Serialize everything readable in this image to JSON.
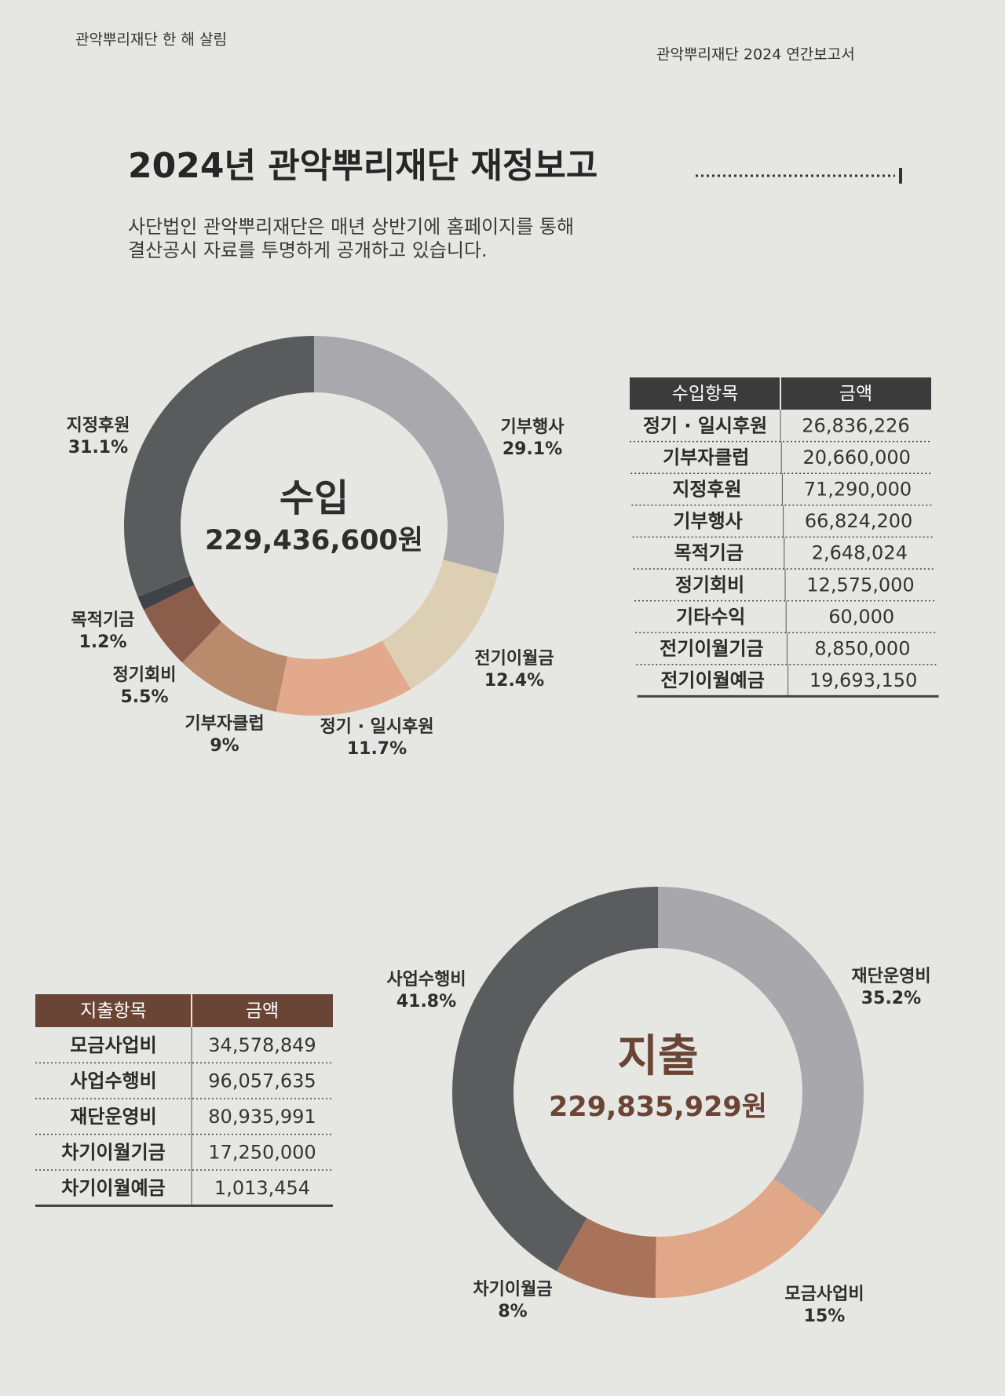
{
  "header": {
    "left": "관악뿌리재단 한 해 살림",
    "right": "관악뿌리재단 2024 연간보고서"
  },
  "title": "2024년 관악뿌리재단 재정보고",
  "description": [
    "사단법인 관악뿌리재단은 매년 상반기에 홈페이지를 통해",
    "결산공시 자료를 투명하게 공개하고 있습니다."
  ],
  "chart_data": [
    {
      "type": "pie",
      "center_label": "수입",
      "total_label": "229,436,600원",
      "categories": [
        "기부행사",
        "전기이월금",
        "정기 · 일시후원",
        "기부자클럽",
        "정기회비",
        "목적기금",
        "지정후원"
      ],
      "values": [
        29.1,
        12.4,
        11.7,
        9,
        5.5,
        1.2,
        31.1
      ],
      "value_labels": [
        "29.1%",
        "12.4%",
        "11.7%",
        "9%",
        "5.5%",
        "1.2%",
        "31.1%"
      ],
      "colors": [
        "#a9a9ad",
        "#ddcfb3",
        "#e2a98c",
        "#b98a6c",
        "#8b5d4b",
        "#3f4246",
        "#5a5b5d"
      ]
    },
    {
      "type": "pie",
      "center_label": "지출",
      "total_label": "229,835,929원",
      "categories": [
        "재단운영비",
        "모금사업비",
        "차기이월금",
        "사업수행비"
      ],
      "values": [
        35.2,
        15,
        8,
        41.8
      ],
      "value_labels": [
        "35.2%",
        "15%",
        "8%",
        "41.8%"
      ],
      "colors": [
        "#a8a8ac",
        "#e0a888",
        "#a9735a",
        "#5b5c5e"
      ]
    }
  ],
  "tables": [
    {
      "columns": [
        "수입항목",
        "금액"
      ],
      "rows": [
        [
          "정기 · 일시후원",
          "26,836,226"
        ],
        [
          "기부자클럽",
          "20,660,000"
        ],
        [
          "지정후원",
          "71,290,000"
        ],
        [
          "기부행사",
          "66,824,200"
        ],
        [
          "목적기금",
          "2,648,024"
        ],
        [
          "정기회비",
          "12,575,000"
        ],
        [
          "기타수익",
          "60,000"
        ],
        [
          "전기이월기금",
          "8,850,000"
        ],
        [
          "전기이월예금",
          "19,693,150"
        ]
      ]
    },
    {
      "columns": [
        "지출항목",
        "금액"
      ],
      "rows": [
        [
          "모금사업비",
          "34,578,849"
        ],
        [
          "사업수행비",
          "96,057,635"
        ],
        [
          "재단운영비",
          "80,935,991"
        ],
        [
          "차기이월기금",
          "17,250,000"
        ],
        [
          "차기이월예금",
          "1,013,454"
        ]
      ]
    }
  ]
}
